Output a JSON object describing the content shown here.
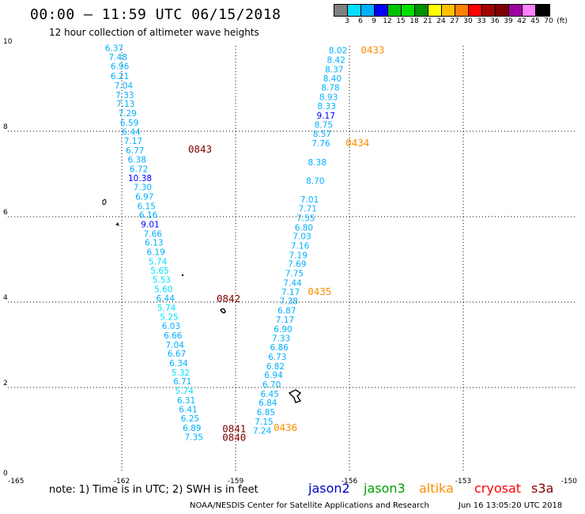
{
  "header": {
    "title": "00:00 — 11:59 UTC 06/15/2018",
    "subtitle": "12 hour collection of altimeter wave heights"
  },
  "color_scale": {
    "colors": [
      "#808080",
      "#00e0ff",
      "#00b0ff",
      "#0000ff",
      "#00c000",
      "#00e000",
      "#009000",
      "#ffff00",
      "#ffc000",
      "#ff8000",
      "#ff0000",
      "#a00000",
      "#800000",
      "#a000a0",
      "#ff80ff",
      "#000000"
    ],
    "labels": [
      "3",
      "6",
      "9",
      "12",
      "15",
      "18",
      "21",
      "24",
      "27",
      "30",
      "33",
      "36",
      "39",
      "42",
      "45",
      "70",
      "(ft)"
    ]
  },
  "chart_data": {
    "type": "scatter",
    "x_ticks": [
      "-165",
      "-162",
      "-159",
      "-156",
      "-153",
      "-150"
    ],
    "y_ticks": [
      "0",
      "2",
      "4",
      "6",
      "8",
      "10"
    ],
    "xlim": [
      -165,
      -150
    ],
    "ylim": [
      0,
      10
    ],
    "grid": true,
    "tracks": [
      {
        "name": "track-left",
        "points": [
          {
            "lon": -162.2,
            "lat": 9.88,
            "v": "6.37",
            "c": "#00b0ff"
          },
          {
            "lon": -162.1,
            "lat": 9.67,
            "v": "7.48",
            "c": "#00b0ff"
          },
          {
            "lon": -162.05,
            "lat": 9.45,
            "v": "6.96",
            "c": "#00b0ff"
          },
          {
            "lon": -162.05,
            "lat": 9.22,
            "v": "6.21",
            "c": "#00b0ff"
          },
          {
            "lon": -161.95,
            "lat": 9.0,
            "v": "7.04",
            "c": "#00b0ff"
          },
          {
            "lon": -161.92,
            "lat": 8.78,
            "v": "7.33",
            "c": "#00b0ff"
          },
          {
            "lon": -161.9,
            "lat": 8.57,
            "v": "7.13",
            "c": "#00b0ff"
          },
          {
            "lon": -161.85,
            "lat": 8.35,
            "v": "7.29",
            "c": "#00b0ff"
          },
          {
            "lon": -161.8,
            "lat": 8.13,
            "v": "6.59",
            "c": "#00b0ff"
          },
          {
            "lon": -161.75,
            "lat": 7.92,
            "v": "6.44",
            "c": "#00b0ff"
          },
          {
            "lon": -161.7,
            "lat": 7.7,
            "v": "7.17",
            "c": "#00b0ff"
          },
          {
            "lon": -161.65,
            "lat": 7.48,
            "v": "6.77",
            "c": "#00b0ff"
          },
          {
            "lon": -161.6,
            "lat": 7.27,
            "v": "6.38",
            "c": "#00b0ff"
          },
          {
            "lon": -161.55,
            "lat": 7.05,
            "v": "6.72",
            "c": "#00b0ff"
          },
          {
            "lon": -161.52,
            "lat": 6.83,
            "v": "10.38",
            "c": "#0000ff"
          },
          {
            "lon": -161.45,
            "lat": 6.62,
            "v": "7.30",
            "c": "#00b0ff"
          },
          {
            "lon": -161.4,
            "lat": 6.4,
            "v": "6.97",
            "c": "#00b0ff"
          },
          {
            "lon": -161.35,
            "lat": 6.18,
            "v": "6.15",
            "c": "#00b0ff"
          },
          {
            "lon": -161.3,
            "lat": 5.97,
            "v": "6.16",
            "c": "#00b0ff"
          },
          {
            "lon": -161.25,
            "lat": 5.75,
            "v": "9.01",
            "c": "#0000ff"
          },
          {
            "lon": -161.18,
            "lat": 5.53,
            "v": "7.66",
            "c": "#00b0ff"
          },
          {
            "lon": -161.15,
            "lat": 5.32,
            "v": "6.13",
            "c": "#00b0ff"
          },
          {
            "lon": -161.1,
            "lat": 5.1,
            "v": "6.19",
            "c": "#00b0ff"
          },
          {
            "lon": -161.05,
            "lat": 4.88,
            "v": "5.74",
            "c": "#00e0ff"
          },
          {
            "lon": -161.0,
            "lat": 4.67,
            "v": "5.65",
            "c": "#00e0ff"
          },
          {
            "lon": -160.95,
            "lat": 4.45,
            "v": "5.53",
            "c": "#00e0ff"
          },
          {
            "lon": -160.9,
            "lat": 4.23,
            "v": "5.60",
            "c": "#00e0ff"
          },
          {
            "lon": -160.85,
            "lat": 4.02,
            "v": "6.44",
            "c": "#00b0ff"
          },
          {
            "lon": -160.82,
            "lat": 3.8,
            "v": "5.74",
            "c": "#00e0ff"
          },
          {
            "lon": -160.75,
            "lat": 3.58,
            "v": "5.25",
            "c": "#00e0ff"
          },
          {
            "lon": -160.7,
            "lat": 3.37,
            "v": "6.03",
            "c": "#00b0ff"
          },
          {
            "lon": -160.65,
            "lat": 3.15,
            "v": "6.66",
            "c": "#00b0ff"
          },
          {
            "lon": -160.6,
            "lat": 2.93,
            "v": "7.04",
            "c": "#00b0ff"
          },
          {
            "lon": -160.55,
            "lat": 2.72,
            "v": "6.67",
            "c": "#00b0ff"
          },
          {
            "lon": -160.5,
            "lat": 2.5,
            "v": "6.34",
            "c": "#00b0ff"
          },
          {
            "lon": -160.45,
            "lat": 2.28,
            "v": "5.32",
            "c": "#00e0ff"
          },
          {
            "lon": -160.4,
            "lat": 2.07,
            "v": "6.71",
            "c": "#00b0ff"
          },
          {
            "lon": -160.35,
            "lat": 1.85,
            "v": "5.74",
            "c": "#00e0ff"
          },
          {
            "lon": -160.3,
            "lat": 1.63,
            "v": "6.31",
            "c": "#00b0ff"
          },
          {
            "lon": -160.25,
            "lat": 1.42,
            "v": "6.41",
            "c": "#00b0ff"
          },
          {
            "lon": -160.2,
            "lat": 1.2,
            "v": "6.25",
            "c": "#00b0ff"
          },
          {
            "lon": -160.15,
            "lat": 0.98,
            "v": "6.89",
            "c": "#00b0ff"
          },
          {
            "lon": -160.1,
            "lat": 0.77,
            "v": "7.35",
            "c": "#00b0ff"
          }
        ]
      },
      {
        "name": "track-right",
        "points": [
          {
            "lon": -156.3,
            "lat": 9.82,
            "v": "8.02",
            "c": "#00b0ff"
          },
          {
            "lon": -156.35,
            "lat": 9.6,
            "v": "8.42",
            "c": "#00b0ff"
          },
          {
            "lon": -156.4,
            "lat": 9.38,
            "v": "8.37",
            "c": "#00b0ff"
          },
          {
            "lon": -156.45,
            "lat": 9.17,
            "v": "8.40",
            "c": "#00b0ff"
          },
          {
            "lon": -156.5,
            "lat": 8.95,
            "v": "8.78",
            "c": "#00b0ff"
          },
          {
            "lon": -156.55,
            "lat": 8.73,
            "v": "8.93",
            "c": "#00b0ff"
          },
          {
            "lon": -156.6,
            "lat": 8.52,
            "v": "8.33",
            "c": "#00b0ff"
          },
          {
            "lon": -156.62,
            "lat": 8.3,
            "v": "9.17",
            "c": "#0000ff"
          },
          {
            "lon": -156.68,
            "lat": 8.08,
            "v": "8.75",
            "c": "#00b0ff"
          },
          {
            "lon": -156.72,
            "lat": 7.87,
            "v": "8.57",
            "c": "#00b0ff"
          },
          {
            "lon": -156.75,
            "lat": 7.65,
            "v": "7.76",
            "c": "#00b0ff"
          },
          {
            "lon": -156.85,
            "lat": 7.2,
            "v": "8.38",
            "c": "#00b0ff"
          },
          {
            "lon": -156.9,
            "lat": 6.77,
            "v": "8.70",
            "c": "#00b0ff"
          },
          {
            "lon": -157.05,
            "lat": 6.33,
            "v": "7.01",
            "c": "#00b0ff"
          },
          {
            "lon": -157.1,
            "lat": 6.12,
            "v": "7.71",
            "c": "#00b0ff"
          },
          {
            "lon": -157.15,
            "lat": 5.9,
            "v": "7.55",
            "c": "#00b0ff"
          },
          {
            "lon": -157.2,
            "lat": 5.68,
            "v": "6.80",
            "c": "#00b0ff"
          },
          {
            "lon": -157.25,
            "lat": 5.47,
            "v": "7.03",
            "c": "#00b0ff"
          },
          {
            "lon": -157.3,
            "lat": 5.25,
            "v": "7.16",
            "c": "#00b0ff"
          },
          {
            "lon": -157.35,
            "lat": 5.03,
            "v": "7.19",
            "c": "#00b0ff"
          },
          {
            "lon": -157.38,
            "lat": 4.82,
            "v": "7.69",
            "c": "#00b0ff"
          },
          {
            "lon": -157.45,
            "lat": 4.6,
            "v": "7.75",
            "c": "#00b0ff"
          },
          {
            "lon": -157.5,
            "lat": 4.38,
            "v": "7.44",
            "c": "#00b0ff"
          },
          {
            "lon": -157.55,
            "lat": 4.17,
            "v": "7.17",
            "c": "#00b0ff"
          },
          {
            "lon": -157.6,
            "lat": 3.95,
            "v": "7.38",
            "c": "#00b0ff"
          },
          {
            "lon": -157.65,
            "lat": 3.73,
            "v": "6.87",
            "c": "#00b0ff"
          },
          {
            "lon": -157.7,
            "lat": 3.52,
            "v": "7.17",
            "c": "#00b0ff"
          },
          {
            "lon": -157.75,
            "lat": 3.3,
            "v": "6.90",
            "c": "#00b0ff"
          },
          {
            "lon": -157.8,
            "lat": 3.08,
            "v": "7.33",
            "c": "#00b0ff"
          },
          {
            "lon": -157.85,
            "lat": 2.87,
            "v": "6.86",
            "c": "#00b0ff"
          },
          {
            "lon": -157.9,
            "lat": 2.65,
            "v": "6.73",
            "c": "#00b0ff"
          },
          {
            "lon": -157.95,
            "lat": 2.43,
            "v": "6.82",
            "c": "#00b0ff"
          },
          {
            "lon": -158.0,
            "lat": 2.22,
            "v": "6.94",
            "c": "#00b0ff"
          },
          {
            "lon": -158.05,
            "lat": 2.0,
            "v": "6.70",
            "c": "#00b0ff"
          },
          {
            "lon": -158.1,
            "lat": 1.78,
            "v": "6.45",
            "c": "#00b0ff"
          },
          {
            "lon": -158.15,
            "lat": 1.57,
            "v": "6.84",
            "c": "#00b0ff"
          },
          {
            "lon": -158.2,
            "lat": 1.35,
            "v": "6.85",
            "c": "#00b0ff"
          },
          {
            "lon": -158.25,
            "lat": 1.13,
            "v": "7.15",
            "c": "#00b0ff"
          },
          {
            "lon": -158.3,
            "lat": 0.92,
            "v": "7.24",
            "c": "#00b0ff"
          }
        ]
      }
    ],
    "time_labels": [
      {
        "lon": -155.7,
        "lat": 9.82,
        "t": "0433",
        "c": "#ff8c00"
      },
      {
        "lon": -156.1,
        "lat": 7.65,
        "t": "0434",
        "c": "#ff8c00"
      },
      {
        "lon": -160.25,
        "lat": 7.5,
        "t": "0843",
        "c": "#800000"
      },
      {
        "lon": -159.5,
        "lat": 4.0,
        "t": "0842",
        "c": "#800000"
      },
      {
        "lon": -157.1,
        "lat": 4.17,
        "t": "0435",
        "c": "#ff8c00"
      },
      {
        "lon": -158.0,
        "lat": 0.98,
        "t": "0436",
        "c": "#ff8c00"
      },
      {
        "lon": -159.35,
        "lat": 0.95,
        "t": "0841",
        "c": "#800000"
      },
      {
        "lon": -159.35,
        "lat": 0.75,
        "t": "0840",
        "c": "#800000"
      }
    ]
  },
  "note": "note: 1) Time is in UTC; 2) SWH is in feet",
  "satellites": [
    {
      "name": "jason2",
      "color": "#0000cc"
    },
    {
      "name": "jason3",
      "color": "#00a000"
    },
    {
      "name": "altika",
      "color": "#ff8c00"
    },
    {
      "name": "cryosat",
      "color": "#ff0000"
    },
    {
      "name": "s3a",
      "color": "#800000"
    }
  ],
  "footer": {
    "credit": "NOAA/NESDIS Center for Satellite Applications and Research",
    "timestamp": "Jun 16 13:05:20 UTC 2018"
  }
}
